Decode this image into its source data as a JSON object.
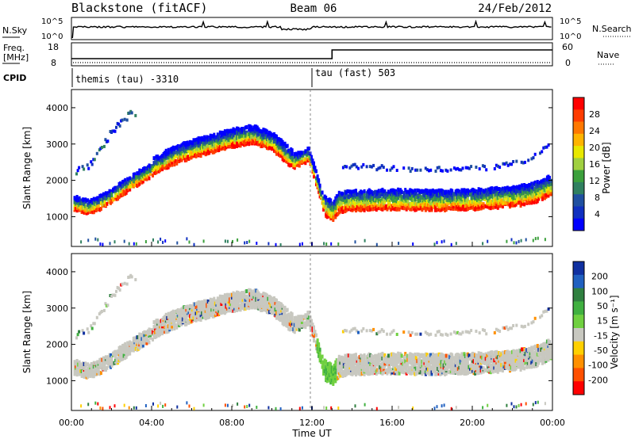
{
  "header": {
    "station": "Blackstone (fitACF)",
    "beam": "Beam 06",
    "date": "24/Feb/2012"
  },
  "status_panels": {
    "nsky_label": "N.Sky",
    "nsky_ticks": [
      "10^5",
      "10^0"
    ],
    "nsearch_label": "N.Search",
    "nsearch_ticks": [
      "10^5",
      "10^0"
    ],
    "freq_label_line1": "Freq.",
    "freq_label_line2": "[MHz]",
    "freq_ticks": [
      "18",
      "8"
    ],
    "nave_label": "Nave",
    "nave_ticks": [
      "60",
      "0"
    ],
    "cpid_label": "CPID",
    "cpid_segments": [
      {
        "text": "themis (tau) -3310",
        "start_hour": 0
      },
      {
        "text": "tau (fast) 503",
        "start_hour": 12.0
      }
    ],
    "freq_step_hour": 13.0
  },
  "power_panel": {
    "ylabel": "Slant Range [km]",
    "cbar_label": "Power [dB]",
    "cbar_ticks": [
      "28",
      "24",
      "20",
      "16",
      "12",
      "8",
      "4"
    ],
    "cbar_colors": [
      "#ff0000",
      "#ff3c00",
      "#ff7800",
      "#ffb400",
      "#e8e800",
      "#a0d040",
      "#3ca03c",
      "#308060",
      "#2050a0",
      "#1030c0",
      "#0000ff"
    ]
  },
  "velocity_panel": {
    "ylabel": "Slant Range [km]",
    "cbar_label": "Velocity [m s⁻¹]",
    "cbar_ticks": [
      "200",
      "100",
      "50",
      "15",
      "-15",
      "-50",
      "-100",
      "-200"
    ],
    "cbar_colors": [
      "#1030a0",
      "#2060c0",
      "#308040",
      "#40b040",
      "#70d040",
      "#c8c8c0",
      "#ffd000",
      "#ff9000",
      "#ff5000",
      "#ff0000"
    ]
  },
  "xaxis": {
    "label": "Time UT",
    "ticks": [
      "00:00",
      "04:00",
      "08:00",
      "12:00",
      "16:00",
      "20:00",
      "00:00"
    ]
  },
  "chart_data": {
    "type": "heatmap",
    "title": "Blackstone (fitACF)",
    "xlabel": "Time UT",
    "ylabel": "Slant Range [km]",
    "xlim_hours": [
      0,
      24
    ],
    "ylim_km": [
      180,
      4500
    ],
    "y_ticks": [
      1000,
      2000,
      3000,
      4000
    ],
    "x_ticks_hours": [
      0,
      4,
      8,
      12,
      16,
      20,
      24
    ],
    "power_db_range": [
      0,
      30
    ],
    "velocity_range": [
      -250,
      250
    ],
    "scatter_bands": [
      {
        "name": "main-echo",
        "points": [
          [
            0.2,
            1250
          ],
          [
            0.8,
            1150
          ],
          [
            1.5,
            1300
          ],
          [
            2.2,
            1550
          ],
          [
            3.0,
            1850
          ],
          [
            4.0,
            2200
          ],
          [
            5.0,
            2500
          ],
          [
            6.0,
            2700
          ],
          [
            7.0,
            2850
          ],
          [
            8.0,
            3000
          ],
          [
            9.0,
            3100
          ],
          [
            10.0,
            2900
          ],
          [
            11.0,
            2400
          ],
          [
            11.8,
            2600
          ],
          [
            12.3,
            1700
          ],
          [
            12.6,
            1100
          ],
          [
            13.0,
            950
          ],
          [
            13.3,
            1200
          ],
          [
            14.0,
            1250
          ],
          [
            16.0,
            1280
          ],
          [
            18.0,
            1250
          ],
          [
            20.0,
            1280
          ],
          [
            22.0,
            1350
          ],
          [
            23.0,
            1450
          ],
          [
            23.8,
            1650
          ]
        ]
      },
      {
        "name": "upper-echo",
        "points": [
          [
            13.5,
            2450
          ],
          [
            15.0,
            2400
          ],
          [
            17.0,
            2350
          ],
          [
            19.0,
            2350
          ],
          [
            21.0,
            2400
          ],
          [
            22.5,
            2550
          ],
          [
            23.5,
            2900
          ],
          [
            24.0,
            3200
          ]
        ]
      },
      {
        "name": "early-high-echo",
        "points": [
          [
            0.3,
            2300
          ],
          [
            1.0,
            2500
          ],
          [
            1.5,
            3000
          ],
          [
            2.0,
            3400
          ],
          [
            2.5,
            3700
          ],
          [
            3.0,
            3900
          ]
        ]
      },
      {
        "name": "ground-scatter-near",
        "points": [
          [
            1.0,
            400
          ],
          [
            3.0,
            300
          ],
          [
            6.0,
            350
          ],
          [
            9.0,
            300
          ],
          [
            12.0,
            250
          ],
          [
            15.0,
            300
          ],
          [
            20.0,
            300
          ],
          [
            23.0,
            350
          ]
        ]
      }
    ]
  }
}
